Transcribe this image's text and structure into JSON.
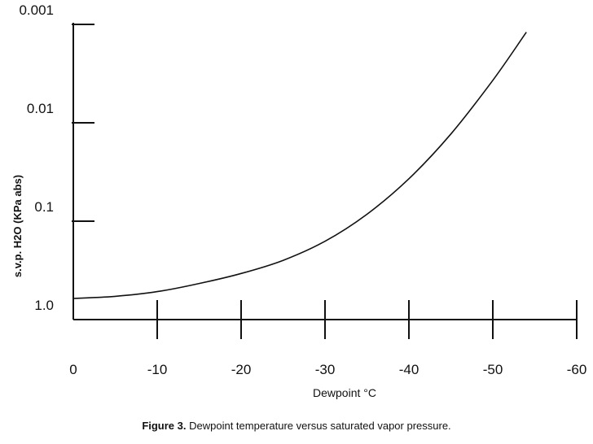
{
  "chart_data": {
    "type": "line",
    "xlabel": "Dewpoint °C",
    "ylabel": "s.v.p. H2O (KPa abs)",
    "x_ticks": [
      0,
      -10,
      -20,
      -30,
      -40,
      -50,
      -60
    ],
    "x_tick_labels": [
      "0",
      "-10",
      "-20",
      "-30",
      "-40",
      "-50",
      "-60"
    ],
    "xlim": [
      0,
      -60
    ],
    "y_scale": "log",
    "y_inverted": true,
    "y_ticks": [
      1.0,
      0.1,
      0.01,
      0.001
    ],
    "y_tick_labels": [
      "1.0",
      "0.1",
      "0.01",
      "0.001"
    ],
    "ylim": [
      1.0,
      0.001
    ],
    "grid": false,
    "series": [
      {
        "x": [
          0,
          -5,
          -10,
          -15,
          -20,
          -25,
          -30,
          -35,
          -40,
          -45,
          -50,
          -54
        ],
        "y": [
          0.61,
          0.58,
          0.52,
          0.43,
          0.34,
          0.25,
          0.16,
          0.085,
          0.037,
          0.013,
          0.0037,
          0.0012
        ]
      }
    ]
  },
  "caption": {
    "figure_number": "Figure 3.",
    "text": "Dewpoint temperature versus saturated vapor pressure."
  }
}
